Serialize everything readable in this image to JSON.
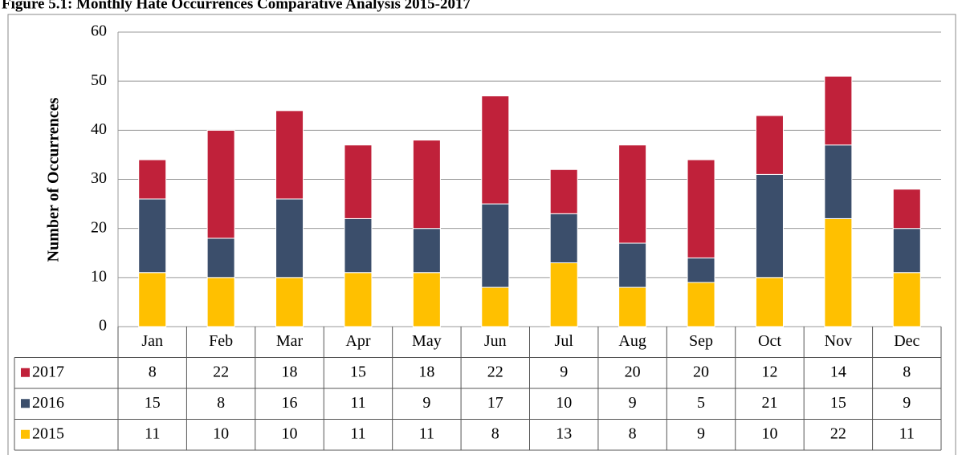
{
  "chart_data": {
    "type": "stacked_bar",
    "title": "Figure 5.1: Monthly Hate Occurrences Comparative Analysis 2015-2017",
    "y_label": "Number of Occurrences",
    "categories": [
      "Jan",
      "Feb",
      "Mar",
      "Apr",
      "May",
      "Jun",
      "Jul",
      "Aug",
      "Sep",
      "Oct",
      "Nov",
      "Dec"
    ],
    "series": [
      {
        "name": "2015",
        "color": "#ffc000",
        "values": [
          11,
          10,
          10,
          11,
          11,
          8,
          13,
          8,
          9,
          10,
          22,
          11
        ]
      },
      {
        "name": "2016",
        "color": "#3b4e6b",
        "values": [
          15,
          8,
          16,
          11,
          9,
          17,
          10,
          9,
          5,
          21,
          15,
          9
        ]
      },
      {
        "name": "2017",
        "color": "#c0213a",
        "values": [
          8,
          22,
          18,
          15,
          18,
          22,
          9,
          20,
          20,
          12,
          14,
          8
        ]
      }
    ],
    "ylim": [
      0,
      60
    ],
    "yticks": [
      0,
      10,
      20,
      30,
      40,
      50,
      60
    ],
    "grid": true
  }
}
